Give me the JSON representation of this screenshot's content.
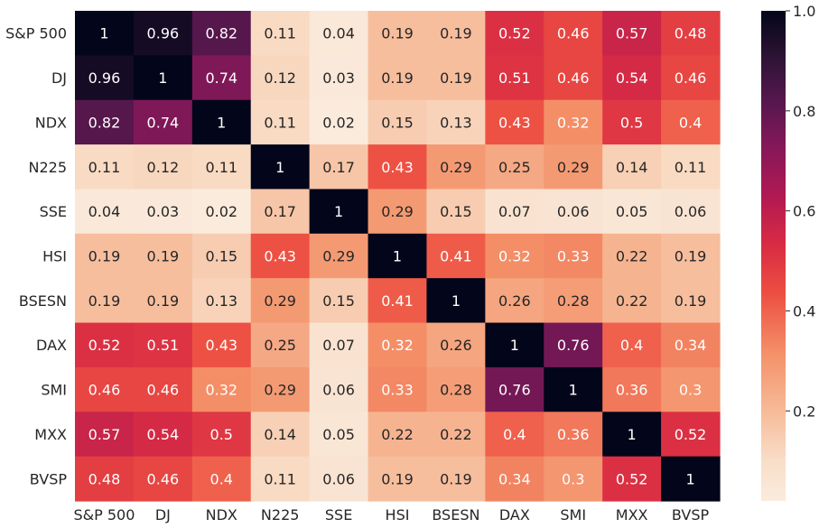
{
  "chart_data": {
    "type": "heatmap",
    "title": "",
    "xlabel": "",
    "ylabel": "",
    "row_labels": [
      "S&P 500",
      "DJ",
      "NDX",
      "N225",
      "SSE",
      "HSI",
      "BSESN",
      "DAX",
      "SMI",
      "MXX",
      "BVSP"
    ],
    "col_labels": [
      "S&P 500",
      "DJ",
      "NDX",
      "N225",
      "SSE",
      "HSI",
      "BSESN",
      "DAX",
      "SMI",
      "MXX",
      "BVSP"
    ],
    "values": [
      [
        1,
        0.96,
        0.82,
        0.11,
        0.04,
        0.19,
        0.19,
        0.52,
        0.46,
        0.57,
        0.48
      ],
      [
        0.96,
        1,
        0.74,
        0.12,
        0.03,
        0.19,
        0.19,
        0.51,
        0.46,
        0.54,
        0.46
      ],
      [
        0.82,
        0.74,
        1,
        0.11,
        0.02,
        0.15,
        0.13,
        0.43,
        0.32,
        0.5,
        0.4
      ],
      [
        0.11,
        0.12,
        0.11,
        1,
        0.17,
        0.43,
        0.29,
        0.25,
        0.29,
        0.14,
        0.11
      ],
      [
        0.04,
        0.03,
        0.02,
        0.17,
        1,
        0.29,
        0.15,
        0.07,
        0.06,
        0.05,
        0.06
      ],
      [
        0.19,
        0.19,
        0.15,
        0.43,
        0.29,
        1,
        0.41,
        0.32,
        0.33,
        0.22,
        0.19
      ],
      [
        0.19,
        0.19,
        0.13,
        0.29,
        0.15,
        0.41,
        1,
        0.26,
        0.28,
        0.22,
        0.19
      ],
      [
        0.52,
        0.51,
        0.43,
        0.25,
        0.07,
        0.32,
        0.26,
        1,
        0.76,
        0.4,
        0.34
      ],
      [
        0.46,
        0.46,
        0.32,
        0.29,
        0.06,
        0.33,
        0.28,
        0.76,
        1,
        0.36,
        0.3
      ],
      [
        0.57,
        0.54,
        0.5,
        0.14,
        0.05,
        0.22,
        0.22,
        0.4,
        0.36,
        1,
        0.52
      ],
      [
        0.48,
        0.46,
        0.4,
        0.11,
        0.06,
        0.19,
        0.19,
        0.34,
        0.3,
        0.52,
        1
      ]
    ],
    "color_range": [
      0.02,
      1.0
    ],
    "colormap": "rocket_r",
    "colorbar": {
      "ticks": [
        0.2,
        0.4,
        0.6,
        0.8,
        1.0
      ],
      "tick_labels": [
        "0.2",
        "0.4",
        "0.6",
        "0.8",
        "1.0"
      ]
    },
    "annotation_colors": {
      "light": "#ffffff",
      "dark": "#262626"
    }
  }
}
